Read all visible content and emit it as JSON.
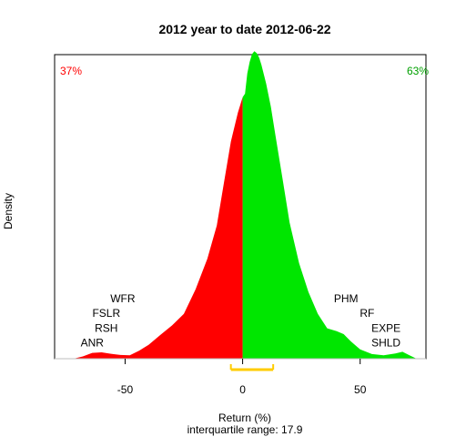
{
  "chart_data": {
    "type": "area",
    "title": "2012  year to date 2012-06-22",
    "xlabel": "Return (%)",
    "ylabel": "Density",
    "subtitle": "interquartile range: 17.9",
    "xlim": [
      -80,
      78
    ],
    "ylim": [
      0,
      0.105
    ],
    "x_ticks": [
      -50,
      0,
      50
    ],
    "x_tick_labels": [
      "-50",
      "0",
      "50"
    ],
    "negative_color": "#ff0000",
    "positive_color": "#00e600",
    "iqr_color": "#ffcc00",
    "iqr": [
      -5,
      13
    ],
    "pct_negative": {
      "label": "37%",
      "color": "#ff0000"
    },
    "pct_positive": {
      "label": "63%",
      "color": "#00a000"
    },
    "density": [
      [
        -72,
        0.0
      ],
      [
        -68,
        0.0008
      ],
      [
        -64,
        0.002
      ],
      [
        -60,
        0.0022
      ],
      [
        -56,
        0.0017
      ],
      [
        -52,
        0.0013
      ],
      [
        -48,
        0.0012
      ],
      [
        -44,
        0.0028
      ],
      [
        -40,
        0.0048
      ],
      [
        -35,
        0.0082
      ],
      [
        -30,
        0.0115
      ],
      [
        -25,
        0.0155
      ],
      [
        -20,
        0.024
      ],
      [
        -15,
        0.0345
      ],
      [
        -11,
        0.046
      ],
      [
        -8,
        0.0605
      ],
      [
        -5,
        0.075
      ],
      [
        -2,
        0.085
      ],
      [
        0,
        0.0903
      ],
      [
        1,
        0.0915
      ],
      [
        2,
        0.0985
      ],
      [
        3,
        0.1025
      ],
      [
        4,
        0.1052
      ],
      [
        5,
        0.1062
      ],
      [
        6,
        0.1055
      ],
      [
        7,
        0.104
      ],
      [
        8,
        0.1015
      ],
      [
        10,
        0.095
      ],
      [
        12,
        0.087
      ],
      [
        14,
        0.077
      ],
      [
        17,
        0.062
      ],
      [
        20,
        0.047
      ],
      [
        24,
        0.033
      ],
      [
        28,
        0.023
      ],
      [
        32,
        0.0155
      ],
      [
        36,
        0.0105
      ],
      [
        40,
        0.0095
      ],
      [
        43,
        0.0085
      ],
      [
        46,
        0.006
      ],
      [
        50,
        0.0032
      ],
      [
        55,
        0.0016
      ],
      [
        60,
        0.0012
      ],
      [
        65,
        0.0018
      ],
      [
        68,
        0.0024
      ],
      [
        71,
        0.0012
      ],
      [
        74,
        0.0
      ]
    ],
    "left_labels": [
      {
        "text": "WFR",
        "x": -51,
        "y": 0.0195
      },
      {
        "text": "FSLR",
        "x": -58,
        "y": 0.0145
      },
      {
        "text": "RSH",
        "x": -58,
        "y": 0.0093
      },
      {
        "text": "ANR",
        "x": -64,
        "y": 0.0043
      }
    ],
    "right_labels": [
      {
        "text": "PHM",
        "x": 44,
        "y": 0.0195
      },
      {
        "text": "RF",
        "x": 53,
        "y": 0.0145
      },
      {
        "text": "EXPE",
        "x": 61,
        "y": 0.0093
      },
      {
        "text": "SHLD",
        "x": 61,
        "y": 0.0043
      }
    ]
  }
}
